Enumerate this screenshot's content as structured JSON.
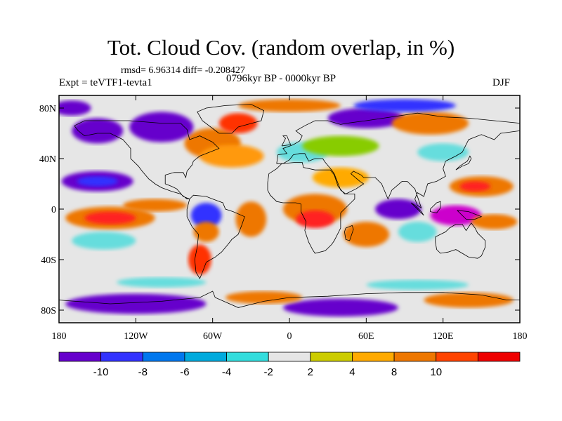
{
  "title": "Tot. Cloud Cov. (random overlap, in %)",
  "stats": "rmsd= 6.96314 diff= -0.208427",
  "experiment": "Expt = teVTF1-tevta1",
  "period": "0796kyr BP - 0000kyr BP",
  "season": "DJF",
  "map": {
    "projection": "cylindrical equidistant",
    "lon_range": [
      -180,
      180
    ],
    "lat_range": [
      -90,
      90
    ],
    "background_color": "#e6e6e6",
    "lat_ticks": [
      {
        "label": "80N",
        "lat": 80
      },
      {
        "label": "40N",
        "lat": 40
      },
      {
        "label": "0",
        "lat": 0
      },
      {
        "label": "40S",
        "lat": -40
      },
      {
        "label": "80S",
        "lat": -80
      }
    ],
    "lon_ticks": [
      {
        "label": "180",
        "lon": -180
      },
      {
        "label": "120W",
        "lon": -120
      },
      {
        "label": "60W",
        "lon": -60
      },
      {
        "label": "0",
        "lon": 0
      },
      {
        "label": "60E",
        "lon": 60
      },
      {
        "label": "120E",
        "lon": 120
      },
      {
        "label": "180",
        "lon": 180
      }
    ],
    "fields": [
      {
        "lon": -150,
        "lat": 22,
        "rx": 28,
        "ry": 8,
        "color": "#6600cc"
      },
      {
        "lon": -150,
        "lat": 22,
        "rx": 16,
        "ry": 4,
        "color": "#3333ff"
      },
      {
        "lon": -140,
        "lat": -7,
        "rx": 35,
        "ry": 9,
        "color": "#ee7700"
      },
      {
        "lon": -140,
        "lat": -7,
        "rx": 20,
        "ry": 5,
        "color": "#ff2222"
      },
      {
        "lon": -145,
        "lat": -25,
        "rx": 25,
        "ry": 7,
        "color": "#66dddd"
      },
      {
        "lon": -105,
        "lat": 3,
        "rx": 25,
        "ry": 5,
        "color": "#ee7700"
      },
      {
        "lon": -60,
        "lat": 52,
        "rx": 22,
        "ry": 12,
        "color": "#ee7700"
      },
      {
        "lon": -45,
        "lat": 42,
        "rx": 25,
        "ry": 9,
        "color": "#ff9911"
      },
      {
        "lon": -40,
        "lat": 68,
        "rx": 15,
        "ry": 8,
        "color": "#ff3300"
      },
      {
        "lon": -100,
        "lat": 65,
        "rx": 25,
        "ry": 12,
        "color": "#6600cc"
      },
      {
        "lon": -150,
        "lat": 62,
        "rx": 20,
        "ry": 10,
        "color": "#6600cc"
      },
      {
        "lon": -65,
        "lat": -5,
        "rx": 12,
        "ry": 10,
        "color": "#3333ff"
      },
      {
        "lon": -65,
        "lat": -18,
        "rx": 10,
        "ry": 8,
        "color": "#ee7700"
      },
      {
        "lon": -70,
        "lat": -40,
        "rx": 9,
        "ry": 12,
        "color": "#ff3300"
      },
      {
        "lon": -30,
        "lat": -8,
        "rx": 12,
        "ry": 14,
        "color": "#ee7700"
      },
      {
        "lon": 20,
        "lat": 0,
        "rx": 25,
        "ry": 12,
        "color": "#ee7700"
      },
      {
        "lon": 20,
        "lat": -8,
        "rx": 15,
        "ry": 7,
        "color": "#ff2222"
      },
      {
        "lon": 60,
        "lat": -20,
        "rx": 18,
        "ry": 10,
        "color": "#ee7700"
      },
      {
        "lon": 40,
        "lat": 25,
        "rx": 22,
        "ry": 8,
        "color": "#ffaa00"
      },
      {
        "lon": 10,
        "lat": 45,
        "rx": 20,
        "ry": 8,
        "color": "#66dddd"
      },
      {
        "lon": 40,
        "lat": 50,
        "rx": 30,
        "ry": 8,
        "color": "#88cc00"
      },
      {
        "lon": 60,
        "lat": 72,
        "rx": 30,
        "ry": 8,
        "color": "#6600cc"
      },
      {
        "lon": 110,
        "lat": 68,
        "rx": 30,
        "ry": 9,
        "color": "#ee7700"
      },
      {
        "lon": 85,
        "lat": 0,
        "rx": 18,
        "ry": 8,
        "color": "#6600cc"
      },
      {
        "lon": 100,
        "lat": -18,
        "rx": 15,
        "ry": 8,
        "color": "#66dddd"
      },
      {
        "lon": 150,
        "lat": 18,
        "rx": 25,
        "ry": 8,
        "color": "#ee7700"
      },
      {
        "lon": 145,
        "lat": 18,
        "rx": 12,
        "ry": 4,
        "color": "#ff2222"
      },
      {
        "lon": 130,
        "lat": -5,
        "rx": 20,
        "ry": 8,
        "color": "#cc00cc"
      },
      {
        "lon": 160,
        "lat": -10,
        "rx": 18,
        "ry": 6,
        "color": "#ee7700"
      },
      {
        "lon": 120,
        "lat": 45,
        "rx": 20,
        "ry": 7,
        "color": "#66dddd"
      },
      {
        "lon": -120,
        "lat": -75,
        "rx": 55,
        "ry": 8,
        "color": "#6600cc"
      },
      {
        "lon": 40,
        "lat": -78,
        "rx": 45,
        "ry": 7,
        "color": "#6600cc"
      },
      {
        "lon": 140,
        "lat": -72,
        "rx": 35,
        "ry": 6,
        "color": "#ee7700"
      },
      {
        "lon": -20,
        "lat": -70,
        "rx": 30,
        "ry": 5,
        "color": "#ee7700"
      },
      {
        "lon": 100,
        "lat": -60,
        "rx": 40,
        "ry": 4,
        "color": "#66dddd"
      },
      {
        "lon": -100,
        "lat": -58,
        "rx": 35,
        "ry": 4,
        "color": "#66dddd"
      },
      {
        "lon": -170,
        "lat": 80,
        "rx": 15,
        "ry": 6,
        "color": "#6600cc"
      },
      {
        "lon": 0,
        "lat": 82,
        "rx": 40,
        "ry": 5,
        "color": "#ee7700"
      },
      {
        "lon": 90,
        "lat": 82,
        "rx": 40,
        "ry": 5,
        "color": "#3333ff"
      }
    ],
    "coastlines": [
      [
        [
          -168,
          66
        ],
        [
          -160,
          70
        ],
        [
          -140,
          70
        ],
        [
          -125,
          70
        ],
        [
          -100,
          68
        ],
        [
          -85,
          68
        ],
        [
          -80,
          63
        ],
        [
          -78,
          55
        ],
        [
          -70,
          58
        ],
        [
          -60,
          53
        ],
        [
          -55,
          48
        ],
        [
          -65,
          44
        ],
        [
          -70,
          42
        ],
        [
          -75,
          38
        ],
        [
          -76,
          35
        ],
        [
          -80,
          30
        ],
        [
          -81,
          25
        ],
        [
          -83,
          29
        ],
        [
          -90,
          29
        ],
        [
          -97,
          27
        ],
        [
          -97,
          20
        ],
        [
          -92,
          18
        ],
        [
          -88,
          16
        ],
        [
          -83,
          10
        ],
        [
          -78,
          8
        ],
        [
          -80,
          8
        ],
        [
          -85,
          12
        ],
        [
          -92,
          14
        ],
        [
          -100,
          17
        ],
        [
          -105,
          20
        ],
        [
          -110,
          24
        ],
        [
          -115,
          30
        ],
        [
          -118,
          34
        ],
        [
          -124,
          40
        ],
        [
          -124,
          48
        ],
        [
          -130,
          55
        ],
        [
          -140,
          60
        ],
        [
          -150,
          60
        ],
        [
          -160,
          58
        ],
        [
          -165,
          62
        ],
        [
          -168,
          66
        ]
      ],
      [
        [
          -78,
          8
        ],
        [
          -75,
          11
        ],
        [
          -65,
          10
        ],
        [
          -60,
          8
        ],
        [
          -52,
          5
        ],
        [
          -50,
          0
        ],
        [
          -44,
          -2
        ],
        [
          -35,
          -6
        ],
        [
          -37,
          -12
        ],
        [
          -40,
          -20
        ],
        [
          -45,
          -24
        ],
        [
          -48,
          -28
        ],
        [
          -53,
          -34
        ],
        [
          -58,
          -38
        ],
        [
          -65,
          -42
        ],
        [
          -68,
          -50
        ],
        [
          -70,
          -55
        ],
        [
          -73,
          -50
        ],
        [
          -74,
          -40
        ],
        [
          -72,
          -30
        ],
        [
          -71,
          -20
        ],
        [
          -76,
          -14
        ],
        [
          -80,
          -6
        ],
        [
          -80,
          0
        ],
        [
          -78,
          8
        ]
      ],
      [
        [
          -55,
          60
        ],
        [
          -45,
          60
        ],
        [
          -40,
          65
        ],
        [
          -22,
          70
        ],
        [
          -20,
          78
        ],
        [
          -30,
          83
        ],
        [
          -50,
          82
        ],
        [
          -65,
          80
        ],
        [
          -72,
          77
        ],
        [
          -68,
          70
        ],
        [
          -55,
          60
        ]
      ],
      [
        [
          -10,
          36
        ],
        [
          -9,
          43
        ],
        [
          -2,
          44
        ],
        [
          -5,
          48
        ],
        [
          3,
          51
        ],
        [
          8,
          54
        ],
        [
          10,
          58
        ],
        [
          5,
          62
        ],
        [
          12,
          66
        ],
        [
          20,
          70
        ],
        [
          30,
          70
        ],
        [
          40,
          67
        ],
        [
          45,
          68
        ],
        [
          60,
          70
        ],
        [
          80,
          73
        ],
        [
          100,
          76
        ],
        [
          120,
          73
        ],
        [
          140,
          72
        ],
        [
          160,
          70
        ],
        [
          180,
          68
        ],
        [
          180,
          62
        ],
        [
          165,
          60
        ],
        [
          160,
          55
        ],
        [
          150,
          59
        ],
        [
          140,
          55
        ],
        [
          135,
          45
        ],
        [
          130,
          42
        ],
        [
          122,
          38
        ],
        [
          120,
          32
        ],
        [
          122,
          26
        ],
        [
          115,
          22
        ],
        [
          108,
          20
        ],
        [
          105,
          10
        ],
        [
          100,
          13
        ],
        [
          98,
          8
        ],
        [
          100,
          3
        ],
        [
          103,
          1
        ],
        [
          98,
          16
        ],
        [
          92,
          22
        ],
        [
          88,
          22
        ],
        [
          80,
          15
        ],
        [
          77,
          8
        ],
        [
          72,
          20
        ],
        [
          67,
          25
        ],
        [
          58,
          25
        ],
        [
          56,
          27
        ],
        [
          50,
          30
        ],
        [
          48,
          28
        ],
        [
          55,
          22
        ],
        [
          58,
          20
        ],
        [
          52,
          16
        ],
        [
          44,
          12
        ],
        [
          40,
          15
        ],
        [
          35,
          28
        ],
        [
          33,
          31
        ],
        [
          28,
          37
        ],
        [
          26,
          40
        ],
        [
          20,
          40
        ],
        [
          15,
          38
        ],
        [
          12,
          44
        ],
        [
          8,
          44
        ],
        [
          3,
          43
        ],
        [
          0,
          39
        ],
        [
          -5,
          36
        ],
        [
          -10,
          36
        ]
      ],
      [
        [
          -17,
          21
        ],
        [
          -16,
          28
        ],
        [
          -10,
          32
        ],
        [
          -6,
          36
        ],
        [
          5,
          37
        ],
        [
          10,
          37
        ],
        [
          11,
          33
        ],
        [
          20,
          31
        ],
        [
          30,
          31
        ],
        [
          32,
          31
        ],
        [
          35,
          27
        ],
        [
          38,
          18
        ],
        [
          43,
          12
        ],
        [
          51,
          12
        ],
        [
          51,
          8
        ],
        [
          45,
          2
        ],
        [
          40,
          -3
        ],
        [
          40,
          -10
        ],
        [
          40,
          -15
        ],
        [
          35,
          -25
        ],
        [
          33,
          -28
        ],
        [
          28,
          -33
        ],
        [
          20,
          -35
        ],
        [
          18,
          -32
        ],
        [
          15,
          -26
        ],
        [
          12,
          -17
        ],
        [
          13,
          -10
        ],
        [
          9,
          -2
        ],
        [
          9,
          4
        ],
        [
          5,
          5
        ],
        [
          0,
          5
        ],
        [
          -5,
          5
        ],
        [
          -10,
          6
        ],
        [
          -15,
          11
        ],
        [
          -17,
          15
        ],
        [
          -17,
          21
        ]
      ],
      [
        [
          114,
          -22
        ],
        [
          114,
          -26
        ],
        [
          115,
          -32
        ],
        [
          118,
          -35
        ],
        [
          124,
          -34
        ],
        [
          130,
          -32
        ],
        [
          135,
          -35
        ],
        [
          140,
          -38
        ],
        [
          147,
          -39
        ],
        [
          150,
          -37
        ],
        [
          153,
          -30
        ],
        [
          153,
          -25
        ],
        [
          147,
          -19
        ],
        [
          145,
          -15
        ],
        [
          142,
          -11
        ],
        [
          138,
          -17
        ],
        [
          135,
          -12
        ],
        [
          130,
          -12
        ],
        [
          125,
          -15
        ],
        [
          122,
          -18
        ],
        [
          114,
          -22
        ]
      ],
      [
        [
          44,
          -15
        ],
        [
          49,
          -13
        ],
        [
          50,
          -16
        ],
        [
          47,
          -25
        ],
        [
          44,
          -24
        ],
        [
          43,
          -18
        ],
        [
          44,
          -15
        ]
      ],
      [
        [
          95,
          5
        ],
        [
          100,
          0
        ],
        [
          105,
          -5
        ],
        [
          103,
          -2
        ],
        [
          98,
          3
        ],
        [
          95,
          5
        ]
      ],
      [
        [
          110,
          0
        ],
        [
          115,
          5
        ],
        [
          118,
          6
        ],
        [
          118,
          1
        ],
        [
          115,
          -3
        ],
        [
          110,
          -2
        ],
        [
          110,
          0
        ]
      ],
      [
        [
          131,
          -1
        ],
        [
          140,
          -2
        ],
        [
          150,
          -6
        ],
        [
          145,
          -8
        ],
        [
          138,
          -8
        ],
        [
          131,
          -1
        ]
      ],
      [
        [
          130,
          31
        ],
        [
          135,
          34
        ],
        [
          140,
          36
        ],
        [
          142,
          40
        ],
        [
          141,
          42
        ],
        [
          139,
          38
        ],
        [
          133,
          34
        ],
        [
          130,
          31
        ]
      ],
      [
        [
          -6,
          50
        ],
        [
          -3,
          56
        ],
        [
          -5,
          58
        ],
        [
          -2,
          58
        ],
        [
          0,
          53
        ],
        [
          1,
          51
        ],
        [
          -6,
          50
        ]
      ],
      [
        [
          -180,
          -72
        ],
        [
          -140,
          -75
        ],
        [
          -100,
          -73
        ],
        [
          -70,
          -70
        ],
        [
          -60,
          -65
        ],
        [
          -58,
          -70
        ],
        [
          -40,
          -78
        ],
        [
          -20,
          -73
        ],
        [
          0,
          -70
        ],
        [
          30,
          -69
        ],
        [
          60,
          -67
        ],
        [
          90,
          -66
        ],
        [
          120,
          -66
        ],
        [
          150,
          -68
        ],
        [
          170,
          -72
        ],
        [
          180,
          -72
        ]
      ]
    ]
  },
  "colorbar": {
    "colors": [
      "#6600cc",
      "#3333ff",
      "#0077ee",
      "#00aadd",
      "#33dddd",
      "#e6e6e6",
      "#cccc00",
      "#ffaa00",
      "#ee7700",
      "#ff4400",
      "#ee0000"
    ],
    "labels": [
      {
        "text": "-10",
        "boundary": 1
      },
      {
        "text": "-8",
        "boundary": 2
      },
      {
        "text": "-6",
        "boundary": 3
      },
      {
        "text": "-4",
        "boundary": 4
      },
      {
        "text": "-2",
        "boundary": 5
      },
      {
        "text": "2",
        "boundary": 6
      },
      {
        "text": "4",
        "boundary": 7
      },
      {
        "text": "8",
        "boundary": 8
      },
      {
        "text": "10",
        "boundary": 9
      }
    ]
  }
}
